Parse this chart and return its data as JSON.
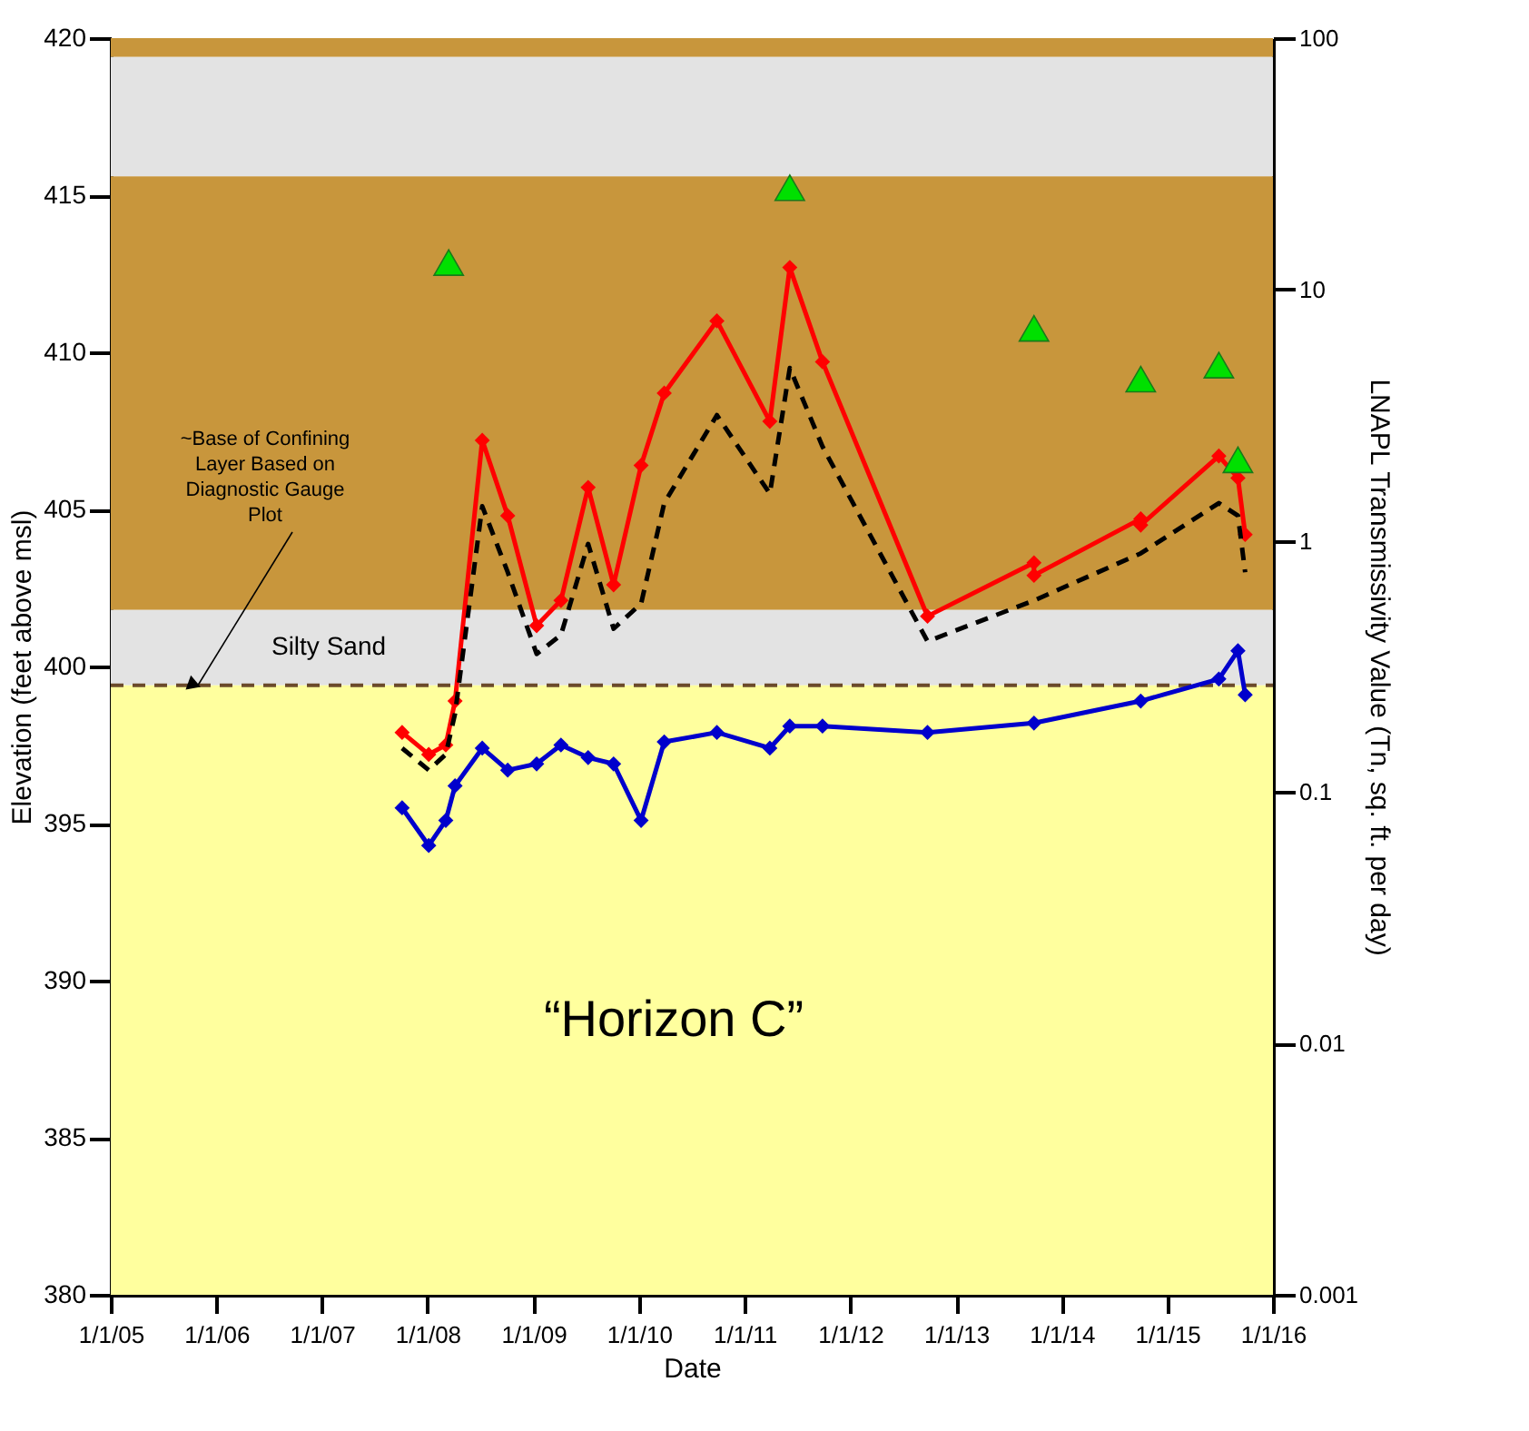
{
  "chart_data": {
    "type": "line",
    "xlabel": "Date",
    "ylabel": "Elevation (feet above msl)",
    "y2label": "LNAPL Transmissivity Value (Tn, sq. ft. per day)",
    "xlim": [
      "2005-01-01",
      "2016-01-01"
    ],
    "xticks": [
      {
        "value": "2005-01-01",
        "label": "1/1/05"
      },
      {
        "value": "2006-01-01",
        "label": "1/1/06"
      },
      {
        "value": "2007-01-01",
        "label": "1/1/07"
      },
      {
        "value": "2008-01-01",
        "label": "1/1/08"
      },
      {
        "value": "2009-01-01",
        "label": "1/1/09"
      },
      {
        "value": "2010-01-01",
        "label": "1/1/10"
      },
      {
        "value": "2011-01-01",
        "label": "1/1/11"
      },
      {
        "value": "2012-01-01",
        "label": "1/1/12"
      },
      {
        "value": "2013-01-01",
        "label": "1/1/13"
      },
      {
        "value": "2014-01-01",
        "label": "1/1/14"
      },
      {
        "value": "2015-01-01",
        "label": "1/1/15"
      },
      {
        "value": "2016-01-01",
        "label": "1/1/16"
      }
    ],
    "ylim": [
      380,
      420
    ],
    "yticks": [
      380,
      385,
      390,
      395,
      400,
      405,
      410,
      415,
      420
    ],
    "y2lim": [
      0.001,
      100
    ],
    "y2ticks": [
      0.001,
      0.01,
      0.1,
      1,
      10,
      100
    ],
    "log": "y2",
    "grid": false,
    "series": [
      {
        "type": "line",
        "color": "#ff0000",
        "marker": "diamond",
        "line_style": "solid",
        "x": [
          "2007-10-05",
          "2008-01-05",
          "2008-03-04",
          "2008-04-05",
          "2008-07-08",
          "2008-10-04",
          "2009-01-12",
          "2009-04-06",
          "2009-07-09",
          "2009-10-05",
          "2010-01-08",
          "2010-03-29",
          "2010-09-27",
          "2011-03-29",
          "2011-06-06",
          "2011-09-27",
          "2012-09-24",
          "2013-09-27",
          "2013-09-27",
          "2014-10-01",
          "2014-10-01",
          "2015-06-28",
          "2015-09-02",
          "2015-09-27"
        ],
        "values": [
          397.9,
          397.2,
          397.5,
          398.9,
          407.2,
          404.8,
          401.3,
          402.1,
          405.7,
          402.6,
          406.4,
          408.7,
          411.0,
          407.8,
          412.7,
          409.7,
          401.6,
          403.3,
          402.9,
          404.7,
          404.5,
          406.7,
          406.0,
          404.2
        ]
      },
      {
        "type": "line",
        "color": "#000000",
        "marker": "none",
        "line_style": "dashed",
        "x": [
          "2007-10-05",
          "2008-01-05",
          "2008-03-04",
          "2008-04-05",
          "2008-07-08",
          "2008-10-04",
          "2009-01-12",
          "2009-04-06",
          "2009-07-09",
          "2009-10-05",
          "2010-01-08",
          "2010-03-29",
          "2010-09-27",
          "2011-03-29",
          "2011-06-06",
          "2011-09-27",
          "2012-09-24",
          "2013-09-27",
          "2014-10-01",
          "2015-06-28",
          "2015-09-02",
          "2015-09-27"
        ],
        "values": [
          397.4,
          396.7,
          397.2,
          398.5,
          405.1,
          403.0,
          400.4,
          401.0,
          403.9,
          401.2,
          402.0,
          405.2,
          408.0,
          405.5,
          409.5,
          407.0,
          400.8,
          402.1,
          403.6,
          405.2,
          404.8,
          403.0
        ]
      },
      {
        "type": "line",
        "color": "#0000cc",
        "marker": "diamond",
        "line_style": "solid",
        "x": [
          "2007-10-05",
          "2008-01-05",
          "2008-03-04",
          "2008-04-05",
          "2008-07-08",
          "2008-10-04",
          "2009-01-12",
          "2009-04-06",
          "2009-07-09",
          "2009-10-05",
          "2010-01-08",
          "2010-03-29",
          "2010-09-27",
          "2011-03-29",
          "2011-06-06",
          "2011-09-27",
          "2012-09-24",
          "2013-09-27",
          "2014-10-01",
          "2015-06-28",
          "2015-09-02",
          "2015-09-27"
        ],
        "values": [
          395.5,
          394.3,
          395.1,
          396.2,
          397.4,
          396.7,
          396.9,
          397.5,
          397.1,
          396.9,
          395.1,
          397.6,
          397.9,
          397.4,
          398.1,
          398.1,
          397.9,
          398.2,
          398.9,
          399.6,
          400.5,
          399.1
        ]
      },
      {
        "type": "scatter",
        "color": "#00e000",
        "marker": "triangle",
        "axis": "y2",
        "x": [
          "2008-03-14",
          "2011-06-06",
          "2013-09-27",
          "2014-10-01",
          "2015-06-28",
          "2015-09-02"
        ],
        "values": [
          12.8,
          25.4,
          7.0,
          4.4,
          5.0,
          2.1
        ]
      }
    ],
    "bands": [
      {
        "axis": "y",
        "from": 419.4,
        "to": 420,
        "color": "#c8963c"
      },
      {
        "axis": "y",
        "from": 415.6,
        "to": 419.4,
        "color": "#e3e3e3"
      },
      {
        "axis": "y",
        "from": 401.8,
        "to": 415.6,
        "color": "#c8963c"
      },
      {
        "axis": "y",
        "from": 399.4,
        "to": 401.8,
        "color": "#e3e3e3",
        "label": "Silty Sand"
      },
      {
        "axis": "y",
        "from": 380,
        "to": 399.4,
        "color": "#ffff9e",
        "label": "“Horizon C”"
      }
    ],
    "ref_lines": [
      {
        "axis": "y",
        "value": 399.4,
        "label": "~Base of Confining Layer Based on Diagnostic Gauge Plot",
        "color": "#6b4a2b",
        "line_style": "dashed"
      }
    ]
  }
}
